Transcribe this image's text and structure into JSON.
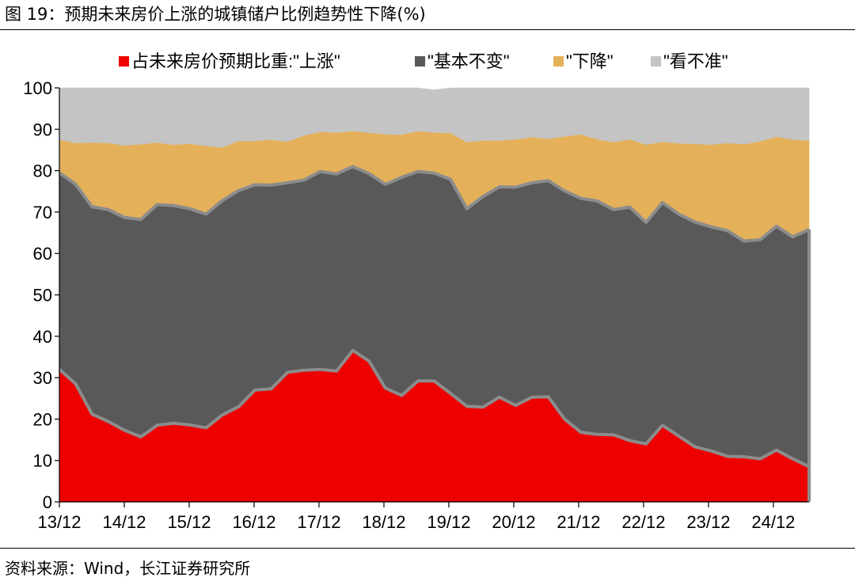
{
  "figure": {
    "title": "图 19：预期未来房价上涨的城镇储户比例趋势性下降(%)",
    "source": "资料来源：Wind，长江证券研究所"
  },
  "colors": {
    "up": "#ee0000",
    "flat": "#595959",
    "down": "#e4b15a",
    "unsure": "#c4c4c4",
    "boundary": "#8c8c8c"
  },
  "chart_data": {
    "type": "area",
    "stacked": true,
    "ylim": [
      0,
      100
    ],
    "yticks": [
      "0",
      "10",
      "20",
      "30",
      "40",
      "50",
      "60",
      "70",
      "80",
      "90",
      "100"
    ],
    "xtick_labels": [
      "13/12",
      "14/12",
      "15/12",
      "16/12",
      "17/12",
      "18/12",
      "19/12",
      "20/12",
      "21/12",
      "22/12",
      "23/12",
      "24/12"
    ],
    "legend_position": "top",
    "series": [
      {
        "name": "占未来房价预期比重:\"上涨\"",
        "key": "up",
        "values": [
          32.0,
          28.5,
          21.2,
          19.4,
          17.3,
          15.7,
          18.5,
          19.0,
          18.6,
          17.9,
          21.0,
          23.0,
          27.0,
          27.3,
          31.3,
          31.8,
          32.0,
          31.6,
          36.6,
          34.0,
          27.5,
          25.7,
          29.2,
          29.2,
          26.2,
          23.1,
          22.9,
          25.3,
          23.3,
          25.3,
          25.4,
          20.0,
          16.8,
          16.3,
          16.2,
          14.8,
          14.0,
          18.5,
          15.9,
          13.3,
          12.3,
          11.0,
          10.9,
          10.4,
          12.5,
          10.4,
          8.5
        ]
      },
      {
        "name": "\"基本不变\"",
        "key": "flat",
        "values": [
          47.5,
          48.2,
          50.1,
          51.2,
          51.4,
          52.5,
          53.3,
          52.6,
          52.2,
          51.6,
          51.8,
          52.2,
          49.6,
          49.2,
          45.8,
          45.9,
          47.8,
          47.6,
          44.4,
          45.3,
          49.2,
          52.7,
          50.6,
          50.2,
          51.7,
          47.7,
          50.9,
          50.8,
          52.7,
          51.8,
          52.2,
          55.1,
          56.5,
          56.4,
          54.4,
          56.4,
          53.5,
          53.8,
          53.6,
          54.3,
          54.1,
          54.5,
          52.1,
          52.9,
          54.1,
          53.6,
          57.3
        ]
      },
      {
        "name": "\"下降\"",
        "key": "down",
        "values": [
          8.0,
          10.0,
          15.5,
          16.1,
          17.4,
          18.2,
          15.0,
          14.7,
          15.7,
          16.5,
          12.8,
          12.0,
          10.6,
          11.0,
          9.9,
          10.8,
          9.6,
          10.0,
          8.6,
          9.9,
          12.1,
          10.3,
          9.8,
          9.8,
          11.2,
          16.1,
          13.5,
          11.2,
          11.6,
          11.0,
          10.1,
          13.2,
          15.5,
          14.9,
          16.3,
          16.4,
          18.8,
          14.7,
          17.1,
          18.9,
          19.9,
          21.2,
          23.4,
          23.8,
          21.6,
          23.5,
          21.5
        ]
      },
      {
        "name": "\"看不准\"",
        "key": "unsure",
        "values": [
          12.5,
          13.3,
          13.2,
          13.3,
          13.9,
          13.6,
          13.2,
          13.7,
          13.5,
          14.0,
          14.4,
          12.8,
          12.8,
          12.5,
          13.0,
          11.5,
          10.6,
          10.8,
          10.4,
          10.8,
          11.2,
          11.3,
          10.4,
          10.3,
          10.9,
          13.1,
          12.7,
          12.7,
          12.4,
          11.9,
          12.3,
          11.7,
          11.2,
          12.4,
          13.1,
          12.4,
          13.7,
          13.0,
          13.4,
          13.5,
          13.7,
          13.3,
          13.6,
          12.9,
          11.8,
          12.5,
          12.7
        ]
      }
    ]
  }
}
